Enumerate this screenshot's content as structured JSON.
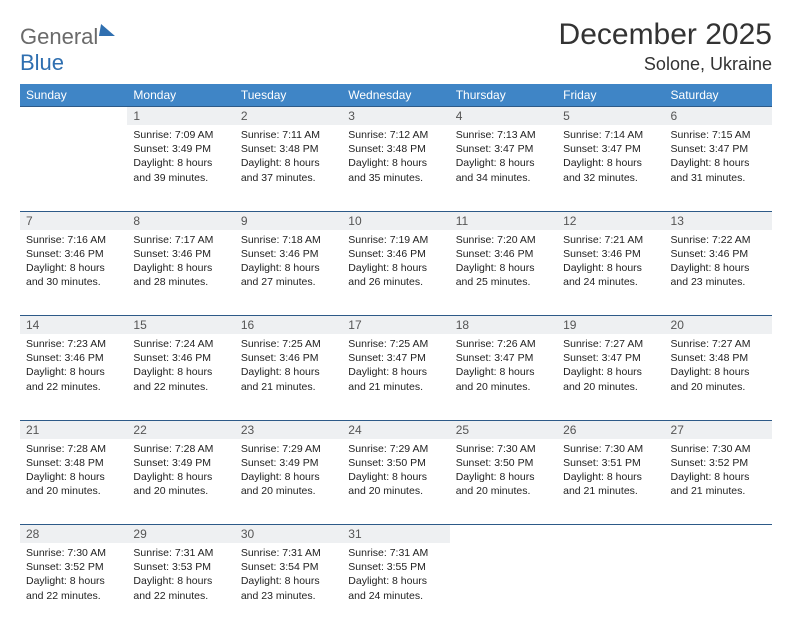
{
  "brand": {
    "part1": "General",
    "part2": "Blue"
  },
  "title": "December 2025",
  "location": "Solone, Ukraine",
  "colors": {
    "header_bg": "#3f85c6",
    "header_text": "#ffffff",
    "daynum_bg": "#eef0f2",
    "border": "#2d5a88",
    "body_text": "#222222",
    "title_text": "#333333",
    "logo_gray": "#6a6a6a",
    "logo_blue": "#2f6fb0"
  },
  "weekdays": [
    "Sunday",
    "Monday",
    "Tuesday",
    "Wednesday",
    "Thursday",
    "Friday",
    "Saturday"
  ],
  "weeks": [
    [
      null,
      {
        "n": "1",
        "sr": "Sunrise: 7:09 AM",
        "ss": "Sunset: 3:49 PM",
        "d1": "Daylight: 8 hours",
        "d2": "and 39 minutes."
      },
      {
        "n": "2",
        "sr": "Sunrise: 7:11 AM",
        "ss": "Sunset: 3:48 PM",
        "d1": "Daylight: 8 hours",
        "d2": "and 37 minutes."
      },
      {
        "n": "3",
        "sr": "Sunrise: 7:12 AM",
        "ss": "Sunset: 3:48 PM",
        "d1": "Daylight: 8 hours",
        "d2": "and 35 minutes."
      },
      {
        "n": "4",
        "sr": "Sunrise: 7:13 AM",
        "ss": "Sunset: 3:47 PM",
        "d1": "Daylight: 8 hours",
        "d2": "and 34 minutes."
      },
      {
        "n": "5",
        "sr": "Sunrise: 7:14 AM",
        "ss": "Sunset: 3:47 PM",
        "d1": "Daylight: 8 hours",
        "d2": "and 32 minutes."
      },
      {
        "n": "6",
        "sr": "Sunrise: 7:15 AM",
        "ss": "Sunset: 3:47 PM",
        "d1": "Daylight: 8 hours",
        "d2": "and 31 minutes."
      }
    ],
    [
      {
        "n": "7",
        "sr": "Sunrise: 7:16 AM",
        "ss": "Sunset: 3:46 PM",
        "d1": "Daylight: 8 hours",
        "d2": "and 30 minutes."
      },
      {
        "n": "8",
        "sr": "Sunrise: 7:17 AM",
        "ss": "Sunset: 3:46 PM",
        "d1": "Daylight: 8 hours",
        "d2": "and 28 minutes."
      },
      {
        "n": "9",
        "sr": "Sunrise: 7:18 AM",
        "ss": "Sunset: 3:46 PM",
        "d1": "Daylight: 8 hours",
        "d2": "and 27 minutes."
      },
      {
        "n": "10",
        "sr": "Sunrise: 7:19 AM",
        "ss": "Sunset: 3:46 PM",
        "d1": "Daylight: 8 hours",
        "d2": "and 26 minutes."
      },
      {
        "n": "11",
        "sr": "Sunrise: 7:20 AM",
        "ss": "Sunset: 3:46 PM",
        "d1": "Daylight: 8 hours",
        "d2": "and 25 minutes."
      },
      {
        "n": "12",
        "sr": "Sunrise: 7:21 AM",
        "ss": "Sunset: 3:46 PM",
        "d1": "Daylight: 8 hours",
        "d2": "and 24 minutes."
      },
      {
        "n": "13",
        "sr": "Sunrise: 7:22 AM",
        "ss": "Sunset: 3:46 PM",
        "d1": "Daylight: 8 hours",
        "d2": "and 23 minutes."
      }
    ],
    [
      {
        "n": "14",
        "sr": "Sunrise: 7:23 AM",
        "ss": "Sunset: 3:46 PM",
        "d1": "Daylight: 8 hours",
        "d2": "and 22 minutes."
      },
      {
        "n": "15",
        "sr": "Sunrise: 7:24 AM",
        "ss": "Sunset: 3:46 PM",
        "d1": "Daylight: 8 hours",
        "d2": "and 22 minutes."
      },
      {
        "n": "16",
        "sr": "Sunrise: 7:25 AM",
        "ss": "Sunset: 3:46 PM",
        "d1": "Daylight: 8 hours",
        "d2": "and 21 minutes."
      },
      {
        "n": "17",
        "sr": "Sunrise: 7:25 AM",
        "ss": "Sunset: 3:47 PM",
        "d1": "Daylight: 8 hours",
        "d2": "and 21 minutes."
      },
      {
        "n": "18",
        "sr": "Sunrise: 7:26 AM",
        "ss": "Sunset: 3:47 PM",
        "d1": "Daylight: 8 hours",
        "d2": "and 20 minutes."
      },
      {
        "n": "19",
        "sr": "Sunrise: 7:27 AM",
        "ss": "Sunset: 3:47 PM",
        "d1": "Daylight: 8 hours",
        "d2": "and 20 minutes."
      },
      {
        "n": "20",
        "sr": "Sunrise: 7:27 AM",
        "ss": "Sunset: 3:48 PM",
        "d1": "Daylight: 8 hours",
        "d2": "and 20 minutes."
      }
    ],
    [
      {
        "n": "21",
        "sr": "Sunrise: 7:28 AM",
        "ss": "Sunset: 3:48 PM",
        "d1": "Daylight: 8 hours",
        "d2": "and 20 minutes."
      },
      {
        "n": "22",
        "sr": "Sunrise: 7:28 AM",
        "ss": "Sunset: 3:49 PM",
        "d1": "Daylight: 8 hours",
        "d2": "and 20 minutes."
      },
      {
        "n": "23",
        "sr": "Sunrise: 7:29 AM",
        "ss": "Sunset: 3:49 PM",
        "d1": "Daylight: 8 hours",
        "d2": "and 20 minutes."
      },
      {
        "n": "24",
        "sr": "Sunrise: 7:29 AM",
        "ss": "Sunset: 3:50 PM",
        "d1": "Daylight: 8 hours",
        "d2": "and 20 minutes."
      },
      {
        "n": "25",
        "sr": "Sunrise: 7:30 AM",
        "ss": "Sunset: 3:50 PM",
        "d1": "Daylight: 8 hours",
        "d2": "and 20 minutes."
      },
      {
        "n": "26",
        "sr": "Sunrise: 7:30 AM",
        "ss": "Sunset: 3:51 PM",
        "d1": "Daylight: 8 hours",
        "d2": "and 21 minutes."
      },
      {
        "n": "27",
        "sr": "Sunrise: 7:30 AM",
        "ss": "Sunset: 3:52 PM",
        "d1": "Daylight: 8 hours",
        "d2": "and 21 minutes."
      }
    ],
    [
      {
        "n": "28",
        "sr": "Sunrise: 7:30 AM",
        "ss": "Sunset: 3:52 PM",
        "d1": "Daylight: 8 hours",
        "d2": "and 22 minutes."
      },
      {
        "n": "29",
        "sr": "Sunrise: 7:31 AM",
        "ss": "Sunset: 3:53 PM",
        "d1": "Daylight: 8 hours",
        "d2": "and 22 minutes."
      },
      {
        "n": "30",
        "sr": "Sunrise: 7:31 AM",
        "ss": "Sunset: 3:54 PM",
        "d1": "Daylight: 8 hours",
        "d2": "and 23 minutes."
      },
      {
        "n": "31",
        "sr": "Sunrise: 7:31 AM",
        "ss": "Sunset: 3:55 PM",
        "d1": "Daylight: 8 hours",
        "d2": "and 24 minutes."
      },
      null,
      null,
      null
    ]
  ]
}
